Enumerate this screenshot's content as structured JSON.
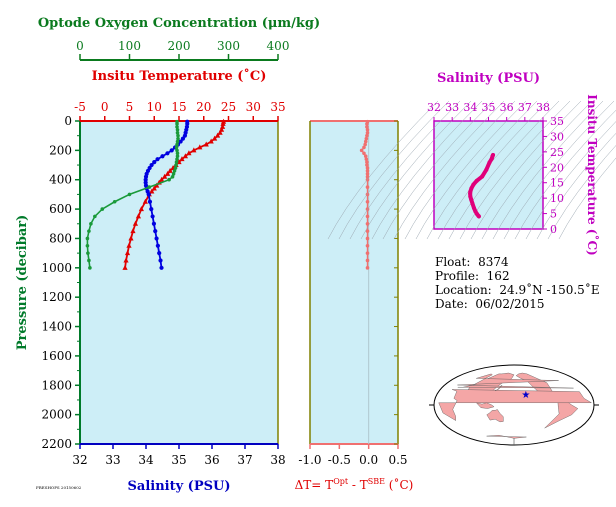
{
  "chart_data": {
    "type": "line",
    "pressure_axis": {
      "label": "Pressure (decibar)",
      "range": [
        0,
        2200
      ],
      "ticks": [
        0,
        200,
        400,
        600,
        800,
        1000,
        1200,
        1400,
        1600,
        1800,
        2000,
        2200
      ],
      "tick_labels": [
        "0",
        "200",
        "400",
        "600",
        "800",
        "1000",
        "1200",
        "1400",
        "1600",
        "1800",
        "2000",
        "2200"
      ],
      "reversed": true,
      "color": "#007a2a"
    },
    "oxygen_axis": {
      "label": "Optode Oxygen Concentration (μm/kg)",
      "range": [
        0,
        400
      ],
      "ticks": [
        0,
        100,
        200,
        300,
        400
      ],
      "tick_labels": [
        "0",
        "100",
        "200",
        "300",
        "400"
      ],
      "color": "#0a7a1e"
    },
    "temperature_axis": {
      "label": "Insitu Temperature (˚C)",
      "range": [
        -5,
        35
      ],
      "ticks": [
        -5,
        0,
        5,
        10,
        15,
        20,
        25,
        30,
        35
      ],
      "tick_labels": [
        "-5",
        "0",
        "5",
        "10",
        "15",
        "20",
        "25",
        "30",
        "35"
      ],
      "color": "#e00000"
    },
    "salinity_axis": {
      "label": "Salinity (PSU)",
      "range": [
        32,
        38
      ],
      "ticks": [
        32,
        33,
        34,
        35,
        36,
        37,
        38
      ],
      "tick_labels": [
        "32",
        "33",
        "34",
        "35",
        "36",
        "37",
        "38"
      ],
      "color": "#0000c0"
    },
    "delta_axis": {
      "label_prefix": "ΔT= T",
      "label_sup1": "Opt",
      "label_mid": " - T",
      "label_sup2": "SBE",
      "label_suffix": " (˚C)",
      "range": [
        -1.0,
        0.5
      ],
      "ticks": [
        -1.0,
        -0.5,
        0.0,
        0.5
      ],
      "tick_labels": [
        "-1.0",
        "-0.5",
        "0.0",
        "0.5"
      ],
      "color": "#e00000"
    },
    "series": [
      {
        "name": "Temperature",
        "color": "#e00000",
        "marker": "triangle",
        "axis": "temperature",
        "pressure": [
          5,
          20,
          40,
          60,
          80,
          100,
          120,
          140,
          160,
          180,
          200,
          220,
          240,
          260,
          280,
          300,
          320,
          340,
          360,
          380,
          400,
          420,
          440,
          460,
          480,
          500,
          550,
          600,
          650,
          700,
          750,
          800,
          850,
          900,
          950,
          1000
        ],
        "values": [
          24.0,
          23.9,
          23.8,
          23.6,
          23.3,
          22.8,
          22.2,
          21.5,
          20.5,
          19.2,
          18.0,
          17.0,
          16.3,
          15.6,
          15.0,
          14.4,
          13.8,
          13.2,
          12.7,
          12.1,
          11.5,
          11.0,
          10.5,
          10.0,
          9.5,
          9.0,
          8.2,
          7.4,
          6.8,
          6.2,
          5.7,
          5.3,
          4.9,
          4.6,
          4.3,
          4.1
        ]
      },
      {
        "name": "Salinity",
        "color": "#0000e0",
        "marker": "circle",
        "axis": "salinity",
        "pressure": [
          5,
          20,
          40,
          60,
          80,
          100,
          120,
          140,
          160,
          180,
          200,
          220,
          240,
          260,
          280,
          300,
          320,
          340,
          360,
          380,
          400,
          420,
          440,
          460,
          480,
          500,
          550,
          600,
          650,
          700,
          750,
          800,
          850,
          900,
          950,
          1000
        ],
        "values": [
          35.25,
          35.25,
          35.24,
          35.22,
          35.2,
          35.18,
          35.12,
          35.05,
          34.97,
          34.88,
          34.78,
          34.65,
          34.5,
          34.35,
          34.25,
          34.17,
          34.11,
          34.06,
          34.02,
          34.0,
          33.99,
          33.99,
          34.0,
          34.02,
          34.05,
          34.08,
          34.12,
          34.16,
          34.2,
          34.24,
          34.28,
          34.32,
          34.36,
          34.4,
          34.44,
          34.47
        ]
      },
      {
        "name": "Oxygen",
        "color": "#1a9a3a",
        "marker": "circle",
        "axis": "oxygen",
        "pressure": [
          5,
          20,
          40,
          60,
          80,
          100,
          120,
          140,
          160,
          180,
          200,
          220,
          240,
          260,
          280,
          300,
          320,
          340,
          360,
          380,
          400,
          450,
          500,
          550,
          600,
          650,
          700,
          750,
          800,
          850,
          900,
          950,
          1000
        ],
        "values": [
          196,
          196,
          196,
          197,
          197,
          198,
          198,
          197,
          196,
          195,
          196,
          197,
          197,
          196,
          195,
          194,
          193,
          191,
          189,
          187,
          180,
          140,
          100,
          70,
          45,
          30,
          22,
          18,
          15,
          15,
          16,
          18,
          20
        ]
      }
    ],
    "delta_series": {
      "name": "ΔT",
      "color": "#f07070",
      "pressure": [
        5,
        20,
        40,
        60,
        80,
        100,
        120,
        140,
        160,
        180,
        200,
        220,
        240,
        260,
        280,
        300,
        320,
        340,
        360,
        380,
        400,
        450,
        500,
        550,
        600,
        650,
        700,
        750,
        800,
        850,
        900,
        950,
        1000
      ],
      "values": [
        -0.02,
        -0.03,
        -0.03,
        -0.02,
        -0.02,
        -0.03,
        -0.04,
        -0.05,
        -0.06,
        -0.08,
        -0.12,
        -0.08,
        -0.05,
        -0.04,
        -0.03,
        -0.03,
        -0.02,
        -0.02,
        -0.02,
        -0.02,
        -0.02,
        -0.02,
        -0.02,
        -0.02,
        -0.02,
        -0.02,
        -0.02,
        -0.02,
        -0.02,
        -0.02,
        -0.02,
        -0.02,
        -0.02
      ]
    },
    "ts_inset": {
      "type": "scatter",
      "title": "Salinity (PSU)",
      "x_range": [
        32,
        38
      ],
      "x_ticks": [
        "32",
        "33",
        "34",
        "35",
        "36",
        "37",
        "38"
      ],
      "y_label": "Insitu Temperature (˚C)",
      "y_range": [
        0,
        35
      ],
      "y_ticks": [
        "0",
        "5",
        "10",
        "15",
        "20",
        "25",
        "30",
        "35"
      ],
      "color": "#e0007a",
      "salinity": [
        35.25,
        35.22,
        35.18,
        35.05,
        34.88,
        34.65,
        34.35,
        34.17,
        34.06,
        34.0,
        33.99,
        34.0,
        34.05,
        34.12,
        34.2,
        34.28,
        34.36,
        34.44,
        34.47
      ],
      "temperature": [
        24.0,
        23.6,
        22.8,
        21.5,
        19.2,
        17.0,
        15.6,
        14.4,
        13.2,
        12.1,
        11.5,
        10.5,
        9.5,
        8.2,
        6.8,
        5.7,
        4.9,
        4.3,
        4.1
      ]
    }
  },
  "info": {
    "float_label": "Float:",
    "float_value": "8374",
    "profile_label": "Profile:",
    "profile_value": "162",
    "location_label": "Location:",
    "location_value": "24.9˚N  -150.5˚E",
    "date_label": "Date:",
    "date_value": "06/02/2015"
  },
  "map": {
    "land_color": "#f4a6a6",
    "ocean_color": "#ffffff",
    "marker": "★",
    "marker_color": "#0000cc",
    "marker_lon": -150.5,
    "marker_lat": 24.9
  },
  "footer": {
    "stamp": "FRESHOPS 20150602"
  }
}
